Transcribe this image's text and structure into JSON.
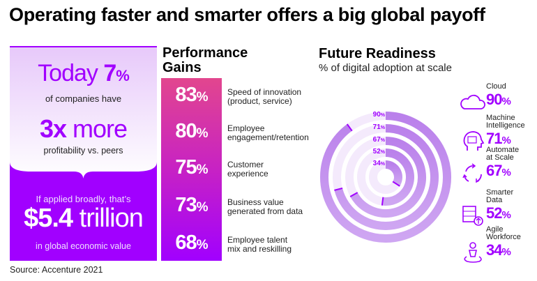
{
  "title": "Operating faster and smarter offers a big global payoff",
  "left": {
    "today": "Today",
    "today_pct": "7",
    "pct_sign": "%",
    "line1": "of companies have",
    "three": "3x",
    "more": " more",
    "line2": "profitability vs. peers",
    "line3": "If applied broadly, that’s",
    "amount": "$5.4",
    "trillion": " trillion",
    "line4": "in global economic value"
  },
  "performance": {
    "title1": "Performance",
    "title2": "Gains",
    "items": [
      {
        "value": "83",
        "label1": "Speed of innovation",
        "label2": "(product, service)"
      },
      {
        "value": "80",
        "label1": "Employee",
        "label2": "engagement/retention"
      },
      {
        "value": "75",
        "label1": "Customer",
        "label2": "experience"
      },
      {
        "value": "73",
        "label1": "Business value",
        "label2": "generated from data"
      },
      {
        "value": "68",
        "label1": "Employee talent",
        "label2": "mix and reskilling"
      }
    ]
  },
  "chart_data": {
    "type": "radial-bar",
    "title": "Future Readiness",
    "subtitle": "% of digital adoption at scale",
    "unit": "%",
    "max": 100,
    "categories": [
      "Cloud",
      "Machine Intelligence",
      "Automate at Scale",
      "Smarter Data",
      "Agile Workforce"
    ],
    "label1": [
      "Cloud",
      "Machine",
      "Automate",
      "Smarter",
      "Agile"
    ],
    "label2": [
      "",
      "Intelligence",
      "at Scale",
      "Data",
      "Workforce"
    ],
    "values": [
      90,
      71,
      67,
      52,
      34
    ],
    "icons": [
      "cloud-icon",
      "head-binary-icon",
      "cycle-arrows-icon",
      "server-upload-icon",
      "person-pivot-icon"
    ]
  },
  "colors": {
    "accent": "#a100ff",
    "pink": "#e2468e"
  },
  "source": "Source: Accenture 2021"
}
